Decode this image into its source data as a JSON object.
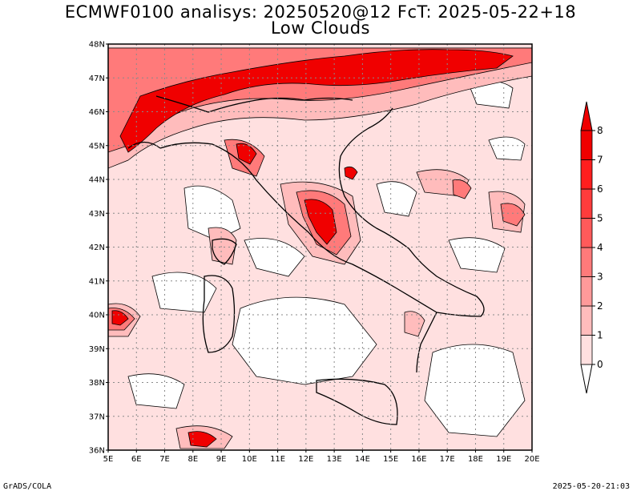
{
  "title": {
    "line1": "ECMWF0100 analisys: 20250520@12 FcT: 2025-05-22+18",
    "line2": "Low Clouds"
  },
  "footer": {
    "left": "GrADS/COLA",
    "right": "2025-05-20-21:03"
  },
  "map": {
    "lat_labels": [
      "36N",
      "37N",
      "38N",
      "39N",
      "40N",
      "41N",
      "42N",
      "43N",
      "44N",
      "45N",
      "46N",
      "47N",
      "48N"
    ],
    "lon_labels": [
      "5E",
      "6E",
      "7E",
      "8E",
      "9E",
      "10E",
      "11E",
      "12E",
      "13E",
      "14E",
      "15E",
      "16E",
      "17E",
      "18E",
      "19E",
      "20E"
    ],
    "lon_range": [
      5,
      20
    ],
    "lat_range": [
      36,
      48
    ],
    "grid": "dotted every 1 degree"
  },
  "colorbar": {
    "ticks": [
      "0",
      "1",
      "2",
      "3",
      "4",
      "5",
      "6",
      "7",
      "8"
    ],
    "colors": [
      "#ffffff",
      "#ffe0e0",
      "#ffbcbc",
      "#ff9a9a",
      "#ff7a7a",
      "#ff5a5a",
      "#ff3c3c",
      "#ff1e1e",
      "#f00000"
    ]
  }
}
